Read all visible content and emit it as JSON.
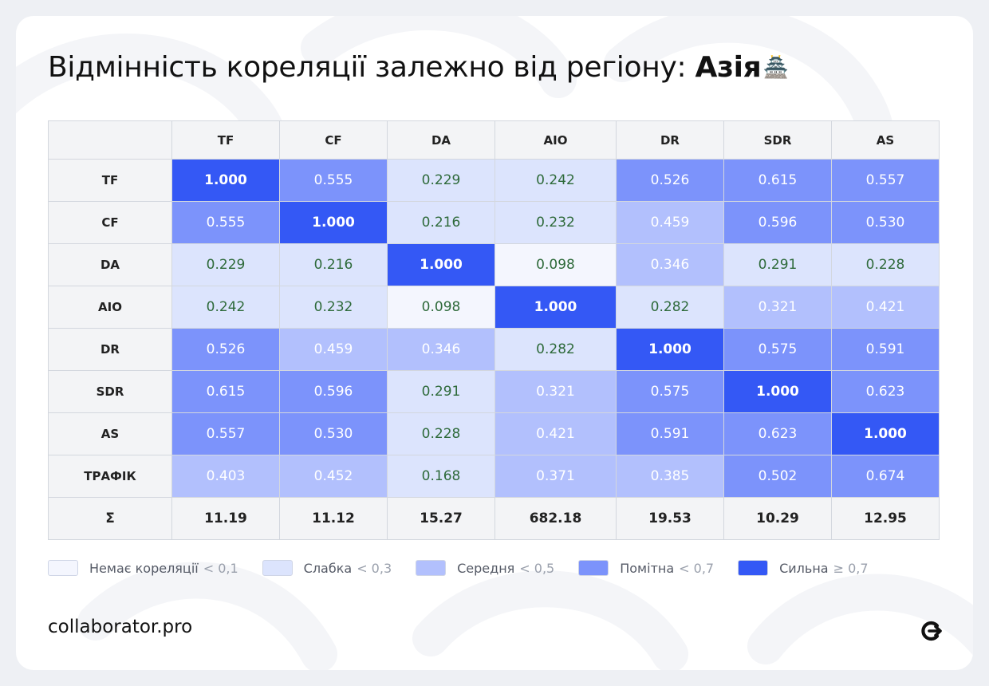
{
  "title": {
    "prefix": "Відмінність кореляції залежно від регіону: ",
    "region": "Азія",
    "emoji": "🏯"
  },
  "footer": {
    "brand": "collaborator.pro",
    "icon": "collaborator-logo-icon"
  },
  "colors": {
    "bin0": "#f4f6fe",
    "bin1": "#dce4fd",
    "bin2": "#b2c0fd",
    "bin3": "#7c93fb",
    "bin4": "#3458f5"
  },
  "chart_data": {
    "type": "heatmap",
    "title": "Відмінність кореляції залежно від регіону: Азія",
    "columns": [
      "TF",
      "CF",
      "DA",
      "AIO",
      "DR",
      "SDR",
      "AS"
    ],
    "rows": [
      "TF",
      "CF",
      "DA",
      "AIO",
      "DR",
      "SDR",
      "AS",
      "ТРАФІК"
    ],
    "values": [
      [
        "1.000",
        "0.555",
        "0.229",
        "0.242",
        "0.526",
        "0.615",
        "0.557"
      ],
      [
        "0.555",
        "1.000",
        "0.216",
        "0.232",
        "0.459",
        "0.596",
        "0.530"
      ],
      [
        "0.229",
        "0.216",
        "1.000",
        "0.098",
        "0.346",
        "0.291",
        "0.228"
      ],
      [
        "0.242",
        "0.232",
        "0.098",
        "1.000",
        "0.282",
        "0.321",
        "0.421"
      ],
      [
        "0.526",
        "0.459",
        "0.346",
        "0.282",
        "1.000",
        "0.575",
        "0.591"
      ],
      [
        "0.615",
        "0.596",
        "0.291",
        "0.321",
        "0.575",
        "1.000",
        "0.623"
      ],
      [
        "0.557",
        "0.530",
        "0.228",
        "0.421",
        "0.591",
        "0.623",
        "1.000"
      ],
      [
        "0.403",
        "0.452",
        "0.168",
        "0.371",
        "0.385",
        "0.502",
        "0.674"
      ]
    ],
    "summary_row": {
      "label": "Σ",
      "values": [
        "11.19",
        "11.12",
        "15.27",
        "682.18",
        "19.53",
        "10.29",
        "12.95"
      ]
    },
    "legend": [
      {
        "label": "Немає кореляції",
        "threshold": "< 0,1"
      },
      {
        "label": "Слабка",
        "threshold": "< 0,3"
      },
      {
        "label": "Середня",
        "threshold": "< 0,5"
      },
      {
        "label": "Помітна",
        "threshold": "< 0,7"
      },
      {
        "label": "Сильна",
        "threshold": "≥ 0,7"
      }
    ]
  }
}
